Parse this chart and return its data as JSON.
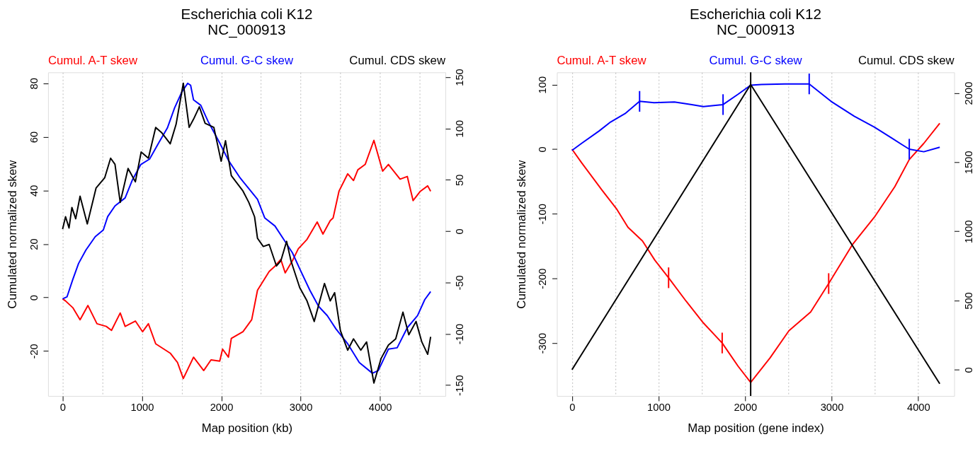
{
  "chart_data": [
    {
      "type": "line",
      "title": "Escherichia coli K12",
      "subtitle": "NC_000913",
      "xlabel": "Map position (kb)",
      "ylabel": "Cumulated normalized skew",
      "xlim": [
        -183,
        4824
      ],
      "xticks": [
        0,
        {
          "value": 500,
          "label": null
        },
        1000,
        {
          "value": 1500,
          "label": null
        },
        2000,
        {
          "value": 2500,
          "label": null
        },
        3000,
        {
          "value": 3500,
          "label": null
        },
        4000,
        {
          "value": 4500,
          "label": null
        }
      ],
      "ylim": [
        -36.8,
        84.1
      ],
      "yticks": [
        -20,
        0,
        20,
        40,
        60,
        80
      ],
      "y2lim": [
        -160.6,
        154.6
      ],
      "y2ticks": [
        -150,
        -100,
        -50,
        0,
        50,
        100,
        150
      ],
      "grid": "x",
      "legend": "top",
      "line_style": "solid",
      "series": [
        {
          "name": "Cumul. A-T skew",
          "color": "#ff0000",
          "x": [
            0,
            37,
            128,
            220,
            319,
            433,
            550,
            616,
            726,
            788,
            917,
            1008,
            1081,
            1173,
            1356,
            1448,
            1521,
            1650,
            1778,
            1870,
            1980,
            2016,
            2090,
            2126,
            2273,
            2383,
            2456,
            2603,
            2676,
            2750,
            2805,
            2896,
            2970,
            3080,
            3208,
            3281,
            3373,
            3409,
            3483,
            3593,
            3666,
            3721,
            3813,
            3923,
            4033,
            4106,
            4253,
            4344,
            4417,
            4509,
            4601,
            4638
          ],
          "values": [
            -0.5,
            -1.3,
            -3.8,
            -8.3,
            -3,
            -9.8,
            -10.8,
            -12.3,
            -5.8,
            -10.8,
            -8.8,
            -12.8,
            -9.8,
            -17.3,
            -20.8,
            -24.3,
            -30.3,
            -22.3,
            -27.3,
            -23.3,
            -23.8,
            -19.3,
            -22.3,
            -15.3,
            -12.8,
            -8.3,
            2.7,
            9.7,
            11.7,
            14.2,
            9.2,
            13.7,
            18.2,
            21.7,
            28.2,
            23.7,
            28.7,
            29.7,
            39.7,
            46.2,
            43.7,
            47.7,
            49.7,
            58.7,
            47.2,
            49.7,
            44.2,
            45.2,
            36.2,
            39.7,
            41.7,
            39.7
          ]
        },
        {
          "name": "Cumul. G-C skew",
          "color": "#0000ff",
          "x": [
            0,
            55,
            128,
            201,
            293,
            411,
            513,
            568,
            660,
            788,
            876,
            986,
            1096,
            1210,
            1320,
            1411,
            1503,
            1576,
            1613,
            1650,
            1741,
            1833,
            1980,
            2090,
            2236,
            2346,
            2456,
            2548,
            2676,
            2786,
            2896,
            2988,
            3116,
            3226,
            3336,
            3446,
            3593,
            3739,
            3904,
            3978,
            4106,
            4216,
            4344,
            4473,
            4564,
            4638
          ],
          "values": [
            -0.5,
            0.2,
            6.7,
            12.7,
            17.7,
            22.7,
            25.2,
            30.2,
            34.2,
            37.2,
            43.7,
            49.7,
            51.7,
            57.7,
            63.3,
            70.8,
            76.8,
            80,
            79.3,
            73.8,
            71.8,
            65.8,
            57.7,
            51.2,
            44.7,
            40.7,
            36.7,
            29.7,
            26.7,
            21.7,
            16.7,
            10.7,
            2.7,
            -3.3,
            -6.8,
            -11.8,
            -17.3,
            -24.3,
            -28.3,
            -27.3,
            -19.3,
            -18.8,
            -11.3,
            -6.8,
            -0.8,
            2.2
          ]
        },
        {
          "name": "Cumul. CDS skew",
          "color": "#000000",
          "axis": "y2",
          "x": [
            0,
            37,
            81,
            117,
            165,
            220,
            311,
            422,
            531,
            605,
            660,
            726,
            825,
            917,
            990,
            1081,
            1173,
            1247,
            1356,
            1430,
            1521,
            1595,
            1650,
            1723,
            1796,
            1906,
            1998,
            2053,
            2126,
            2273,
            2346,
            2419,
            2456,
            2529,
            2603,
            2695,
            2750,
            2823,
            2878,
            2988,
            3080,
            3171,
            3300,
            3373,
            3428,
            3501,
            3593,
            3666,
            3758,
            3831,
            3923,
            4014,
            4106,
            4198,
            4289,
            4363,
            4454,
            4527,
            4601,
            4638
          ],
          "values": [
            2,
            14,
            3,
            23,
            12,
            34,
            7,
            42,
            52,
            71,
            65,
            28,
            61,
            48,
            77,
            71,
            101,
            96,
            85,
            104,
            144,
            101,
            109,
            121,
            105,
            101,
            68,
            88,
            54,
            39,
            28,
            14,
            -7,
            -15,
            -13,
            -34,
            -29,
            -10,
            -29,
            -55,
            -68,
            -88,
            -51,
            -68,
            -60,
            -97,
            -116,
            -105,
            -116,
            -108,
            -148,
            -124,
            -111,
            -105,
            -79,
            -101,
            -88,
            -108,
            -120,
            -103
          ]
        }
      ]
    },
    {
      "type": "line",
      "title": "Escherichia coli K12",
      "subtitle": "NC_000913",
      "xlabel": "Map position (gene index)",
      "ylabel": "Cumulated normalized skew",
      "xlim": [
        -174,
        4415
      ],
      "xticks": [
        0,
        {
          "value": 500,
          "label": null
        },
        1000,
        {
          "value": 1500,
          "label": null
        },
        2000,
        {
          "value": 2500,
          "label": null
        },
        3000,
        {
          "value": 3500,
          "label": null
        },
        4000
      ],
      "ylim": [
        -382,
        118.9
      ],
      "yticks": [
        -300,
        -200,
        -100,
        0,
        100
      ],
      "y2lim": [
        -190,
        2149
      ],
      "y2ticks": [
        0,
        500,
        1000,
        1500,
        2000
      ],
      "grid": "x",
      "legend": "top",
      "line_style": "solid",
      "ref_lines": [
        {
          "axis": "x",
          "value": 2064,
          "color": "#000000",
          "line_style": "solid"
        }
      ],
      "series": [
        {
          "name": "Cumul. A-T skew",
          "color": "#ff0000",
          "x": [
            0,
            111,
            345,
            513,
            647,
            814,
            958,
            1116,
            1317,
            1518,
            1735,
            1919,
            2064,
            2288,
            2506,
            2757,
            2965,
            3243,
            3494,
            3729,
            3896,
            4064,
            4248
          ],
          "values": [
            0,
            -21,
            -63,
            -92,
            -121,
            -142,
            -172,
            -199,
            -235,
            -269,
            -300,
            -336,
            -361,
            -323,
            -281,
            -252,
            -208,
            -147,
            -105,
            -58,
            -16,
            9,
            40
          ],
          "errors": [
            null,
            null,
            null,
            null,
            null,
            null,
            null,
            16,
            null,
            null,
            16,
            null,
            null,
            null,
            null,
            null,
            16,
            null,
            null,
            null,
            null,
            null,
            null
          ]
        },
        {
          "name": "Cumul. G-C skew",
          "color": "#0000ff",
          "x": [
            0,
            111,
            312,
            446,
            613,
            781,
            948,
            1183,
            1384,
            1518,
            1745,
            1919,
            2064,
            2188,
            2456,
            2740,
            2992,
            3260,
            3494,
            3695,
            3896,
            4064,
            4248
          ],
          "values": [
            -2,
            9,
            28,
            42,
            55,
            74,
            72,
            73,
            69,
            66,
            69,
            85,
            99,
            100,
            101,
            101,
            74,
            51,
            34,
            17,
            0,
            -4,
            3
          ],
          "errors": [
            null,
            null,
            null,
            null,
            null,
            16,
            null,
            null,
            null,
            null,
            16,
            null,
            null,
            null,
            null,
            16,
            null,
            null,
            null,
            null,
            16,
            null,
            null
          ]
        },
        {
          "name": "Cumul. CDS skew",
          "color": "#000000",
          "axis": "y2",
          "x": [
            0,
            2064,
            4248
          ],
          "values": [
            0,
            2061,
            -102
          ]
        }
      ]
    }
  ]
}
